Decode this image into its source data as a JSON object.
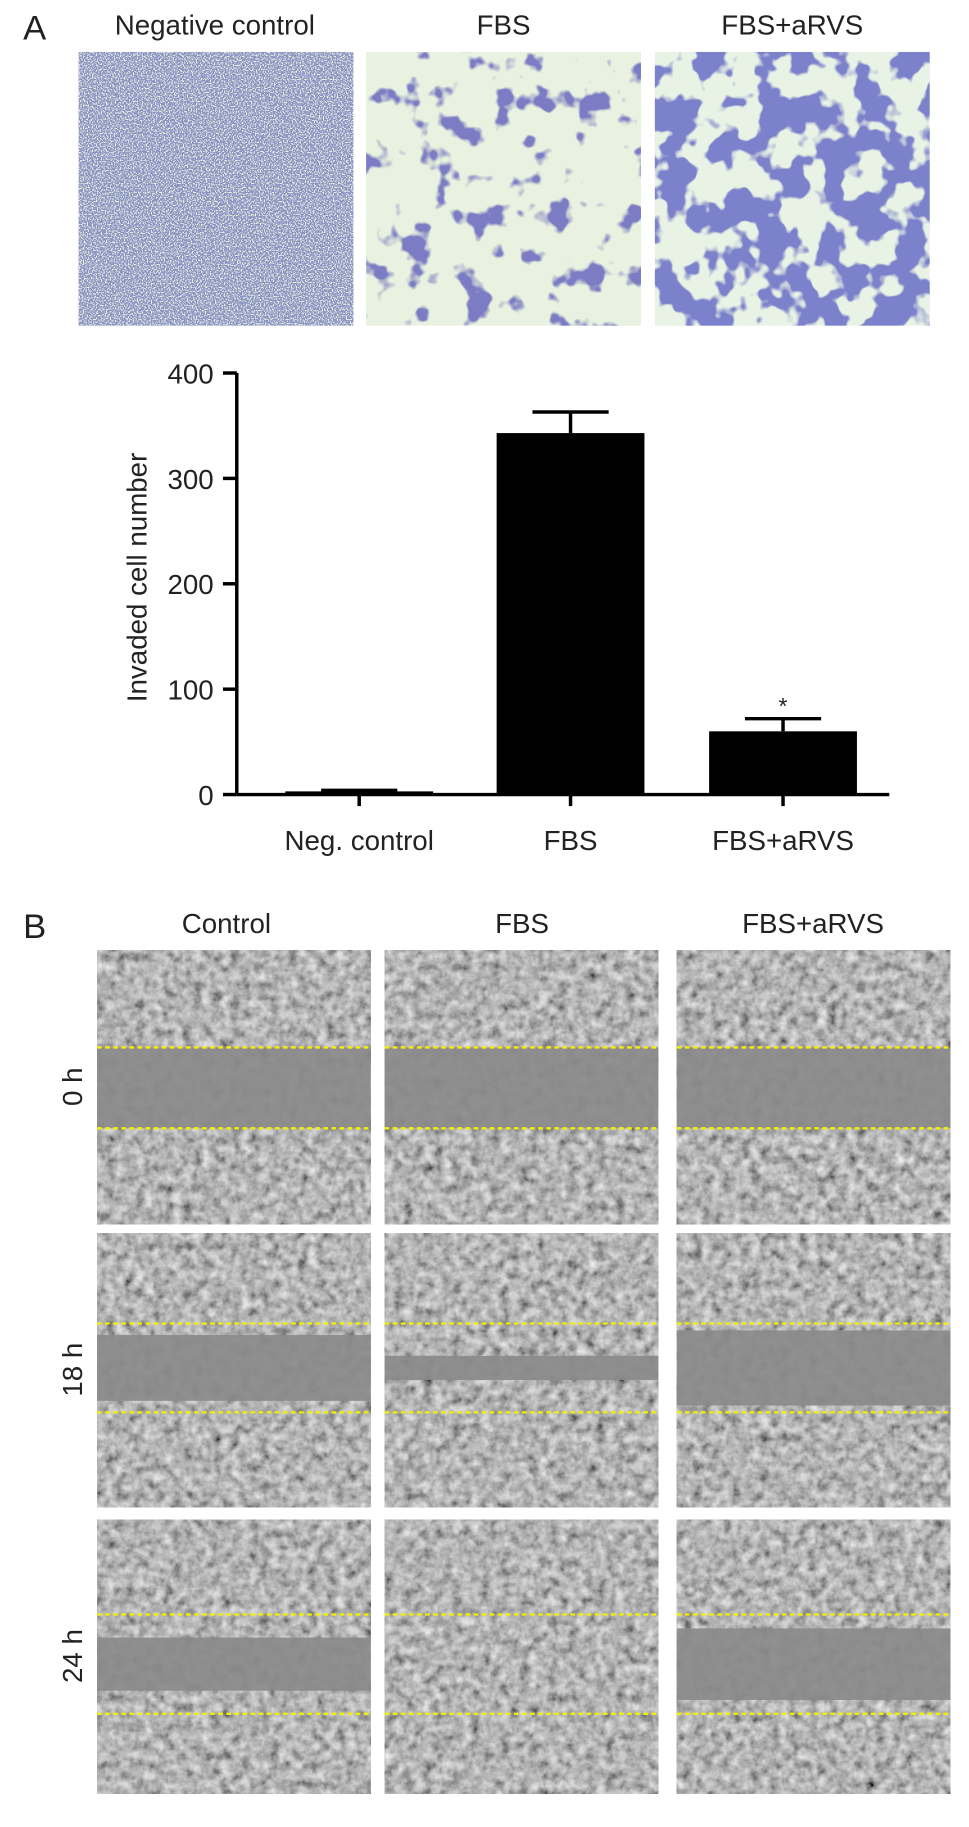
{
  "panel_a": {
    "label": "A",
    "image_titles": [
      "Negative control",
      "FBS",
      "FBS+aRVS"
    ]
  },
  "chart_data": {
    "type": "bar",
    "ylabel": "Invaded cell number",
    "categories": [
      "Neg. control",
      "FBS",
      "FBS+aRVS"
    ],
    "values": [
      3,
      343,
      60
    ],
    "errors": [
      1,
      20,
      12
    ],
    "annotations": [
      null,
      null,
      "*"
    ],
    "color": "#000000",
    "ylim": [
      0,
      400
    ],
    "yticks": [
      0,
      100,
      200,
      300,
      400
    ],
    "grid": false
  },
  "panel_b": {
    "label": "B",
    "columns": [
      "Control",
      "FBS",
      "FBS+aRVS"
    ],
    "rows": [
      "0 h",
      "18 h",
      "24 h"
    ]
  }
}
